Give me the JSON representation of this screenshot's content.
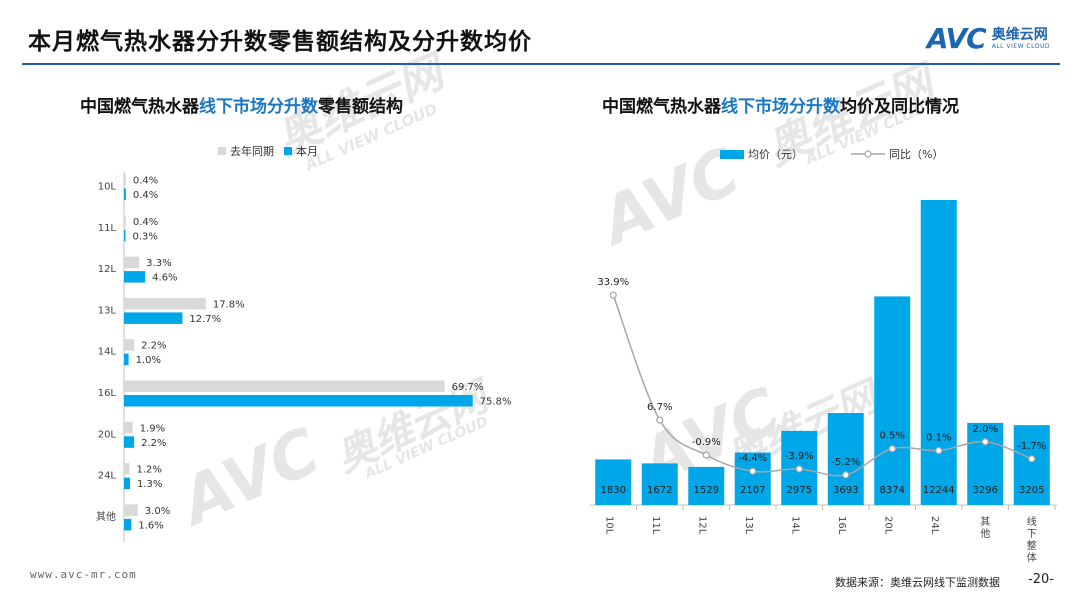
{
  "header": {
    "title": "本月燃气热水器分升数零售额结构及分升数均价",
    "brand_mark": "AVC",
    "brand_name": "奥维云网",
    "brand_sub": "ALL VIEW CLOUD"
  },
  "watermark": {
    "brand": "AVC",
    "cn": "奥维云网",
    "en": "ALL VIEW CLOUD"
  },
  "left_panel": {
    "title_pre": "中国燃气热水器",
    "title_hl": "线下市场分升数",
    "title_post": "零售额结构",
    "legend": [
      "去年同期",
      "本月"
    ]
  },
  "right_panel": {
    "title_pre": "中国燃气热水器",
    "title_hl": "线下市场分升数",
    "title_post": "均价及同比情况",
    "legend": [
      "均价（元）",
      "同比（%）"
    ]
  },
  "footer": {
    "url": "www.avc-mr.com",
    "source": "数据来源：奥维云网线下监测数据",
    "page": "-20-"
  },
  "colors": {
    "current": "#00a7e8",
    "last_year": "#d9d9d9",
    "line": "#a6a6a6",
    "accent": "#1f5fa8",
    "highlight": "#1a78c2"
  },
  "chart_data": [
    {
      "type": "bar",
      "orientation": "horizontal",
      "categories": [
        "10L",
        "11L",
        "12L",
        "13L",
        "14L",
        "16L",
        "20L",
        "24L",
        "其他"
      ],
      "series": [
        {
          "name": "去年同期",
          "values": [
            0.4,
            0.4,
            3.3,
            17.8,
            2.2,
            69.7,
            1.9,
            1.2,
            3.0
          ],
          "labels": [
            "0.4%",
            "0.4%",
            "3.3%",
            "17.8%",
            "2.2%",
            "69.7%",
            "1.9%",
            "1.2%",
            "3.0%"
          ]
        },
        {
          "name": "本月",
          "values": [
            0.4,
            0.3,
            4.6,
            12.7,
            1.0,
            75.8,
            2.2,
            1.3,
            1.6
          ],
          "labels": [
            "0.4%",
            "0.3%",
            "4.6%",
            "12.7%",
            "1.0%",
            "75.8%",
            "2.2%",
            "1.3%",
            "1.6%"
          ]
        }
      ],
      "xlim": [
        0,
        80
      ]
    },
    {
      "type": "bar+line",
      "categories": [
        "10L",
        "11L",
        "12L",
        "13L",
        "14L",
        "16L",
        "20L",
        "24L",
        "其他",
        "线下整体"
      ],
      "series": [
        {
          "name": "均价（元）",
          "type": "bar",
          "values": [
            1830,
            1672,
            1529,
            2107,
            2975,
            3693,
            8374,
            12244,
            3296,
            3205
          ],
          "labels": [
            "1830",
            "1672",
            "1529",
            "2107",
            "2975",
            "3693",
            "8374",
            "12244",
            "3296",
            "3205"
          ]
        },
        {
          "name": "同比（%）",
          "type": "line",
          "values": [
            33.9,
            6.7,
            -0.9,
            -4.4,
            -3.9,
            -5.2,
            0.5,
            0.1,
            2.0,
            -1.7
          ],
          "labels": [
            "33.9%",
            "6.7%",
            "-0.9%",
            "-4.4%",
            "-3.9%",
            "-5.2%",
            "0.5%",
            "0.1%",
            "2.0%",
            "-1.7%"
          ]
        }
      ],
      "y_bar_lim": [
        0,
        13000
      ],
      "y_line_lim": [
        -10,
        40
      ]
    }
  ]
}
